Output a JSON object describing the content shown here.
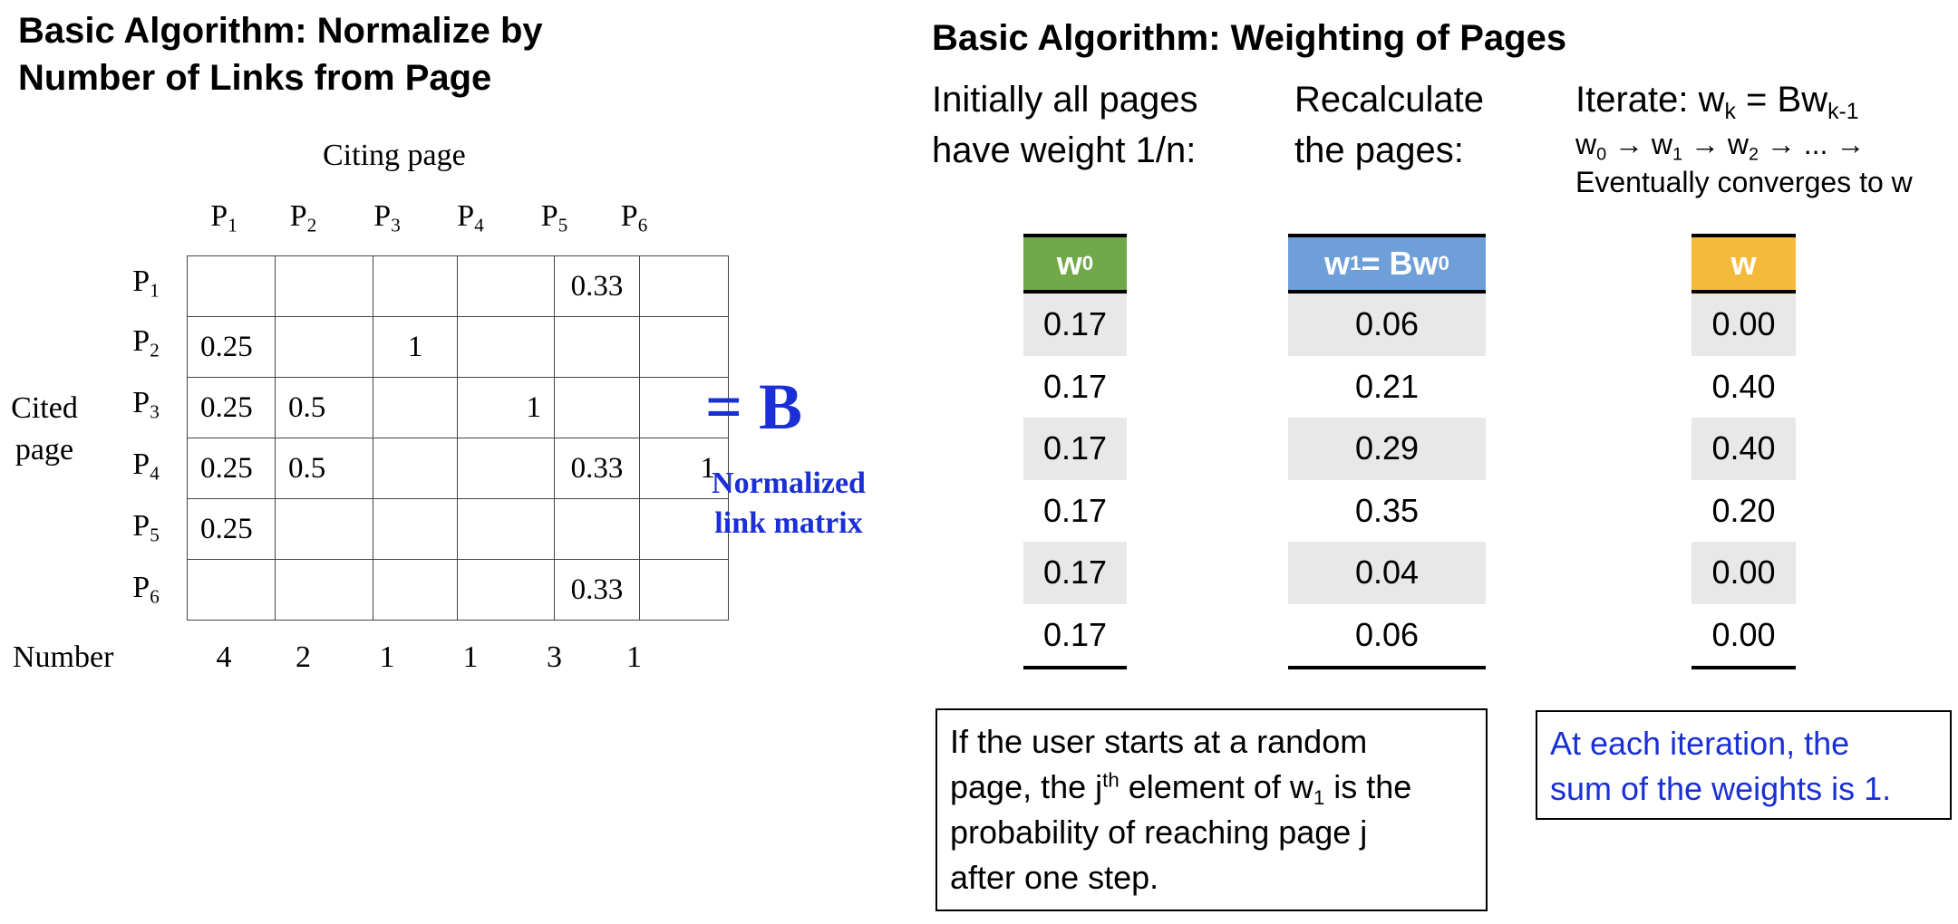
{
  "left": {
    "title_line1": "Basic Algorithm: Normalize by",
    "title_line2": "Number of Links from Page",
    "citing_label": "Citing page",
    "cited_label_line1": "Cited",
    "cited_label_line2": "page",
    "page_prefix": "P",
    "columns": [
      "1",
      "2",
      "3",
      "4",
      "5",
      "6"
    ],
    "rows": [
      "1",
      "2",
      "3",
      "4",
      "5",
      "6"
    ],
    "matrix": [
      [
        "",
        "",
        "",
        "",
        "0.33",
        ""
      ],
      [
        "0.25",
        "",
        "1",
        "",
        "",
        ""
      ],
      [
        "0.25",
        "0.5",
        "",
        "1",
        "",
        ""
      ],
      [
        "0.25",
        "0.5",
        "",
        "",
        "0.33",
        "1"
      ],
      [
        "0.25",
        "",
        "",
        "",
        "",
        ""
      ],
      [
        "",
        "",
        "",
        "",
        "0.33",
        ""
      ]
    ],
    "number_label": "Number",
    "numbers": [
      "4",
      "2",
      "1",
      "1",
      "3",
      "1"
    ],
    "equals_b": "= B",
    "normalized_line1": "Normalized",
    "normalized_line2": "link matrix",
    "accent_color": "#1a2fd6"
  },
  "right": {
    "title": "Basic Algorithm: Weighting of Pages",
    "col1_line1": "Initially all pages",
    "col1_line2": "have weight 1/n:",
    "col2_line1": "Recalculate",
    "col2_line2": "the pages:",
    "col3_prefix": "Iterate: w",
    "col3_sub_k": "k",
    "col3_eq": " = Bw",
    "col3_sub_k1": "k-1",
    "col3_sequence": [
      "w0",
      "w1",
      "w2",
      "..."
    ],
    "col3_line3": "Eventually converges to w",
    "tables": [
      {
        "header": "w0",
        "color": "#70a84a",
        "values": [
          "0.17",
          "0.17",
          "0.17",
          "0.17",
          "0.17",
          "0.17"
        ]
      },
      {
        "header": "w1 = Bw0",
        "color": "#6e9fd8",
        "values": [
          "0.06",
          "0.21",
          "0.29",
          "0.35",
          "0.04",
          "0.06"
        ]
      },
      {
        "header": "w",
        "color": "#f4ba3c",
        "values": [
          "0.00",
          "0.40",
          "0.40",
          "0.20",
          "0.00",
          "0.00"
        ]
      }
    ],
    "note1_line1": "If the user starts at a random",
    "note1_line2a": "page, the j",
    "note1_sup": "th",
    "note1_line2b": " element of w",
    "note1_sub": "1",
    "note1_line2c": " is the",
    "note1_line3": "probability of reaching page j",
    "note1_line4": "after one step.",
    "note2_line1": "At each iteration, the",
    "note2_line2": "sum of the weights is 1.",
    "note2_color": "#1a2fd6"
  }
}
